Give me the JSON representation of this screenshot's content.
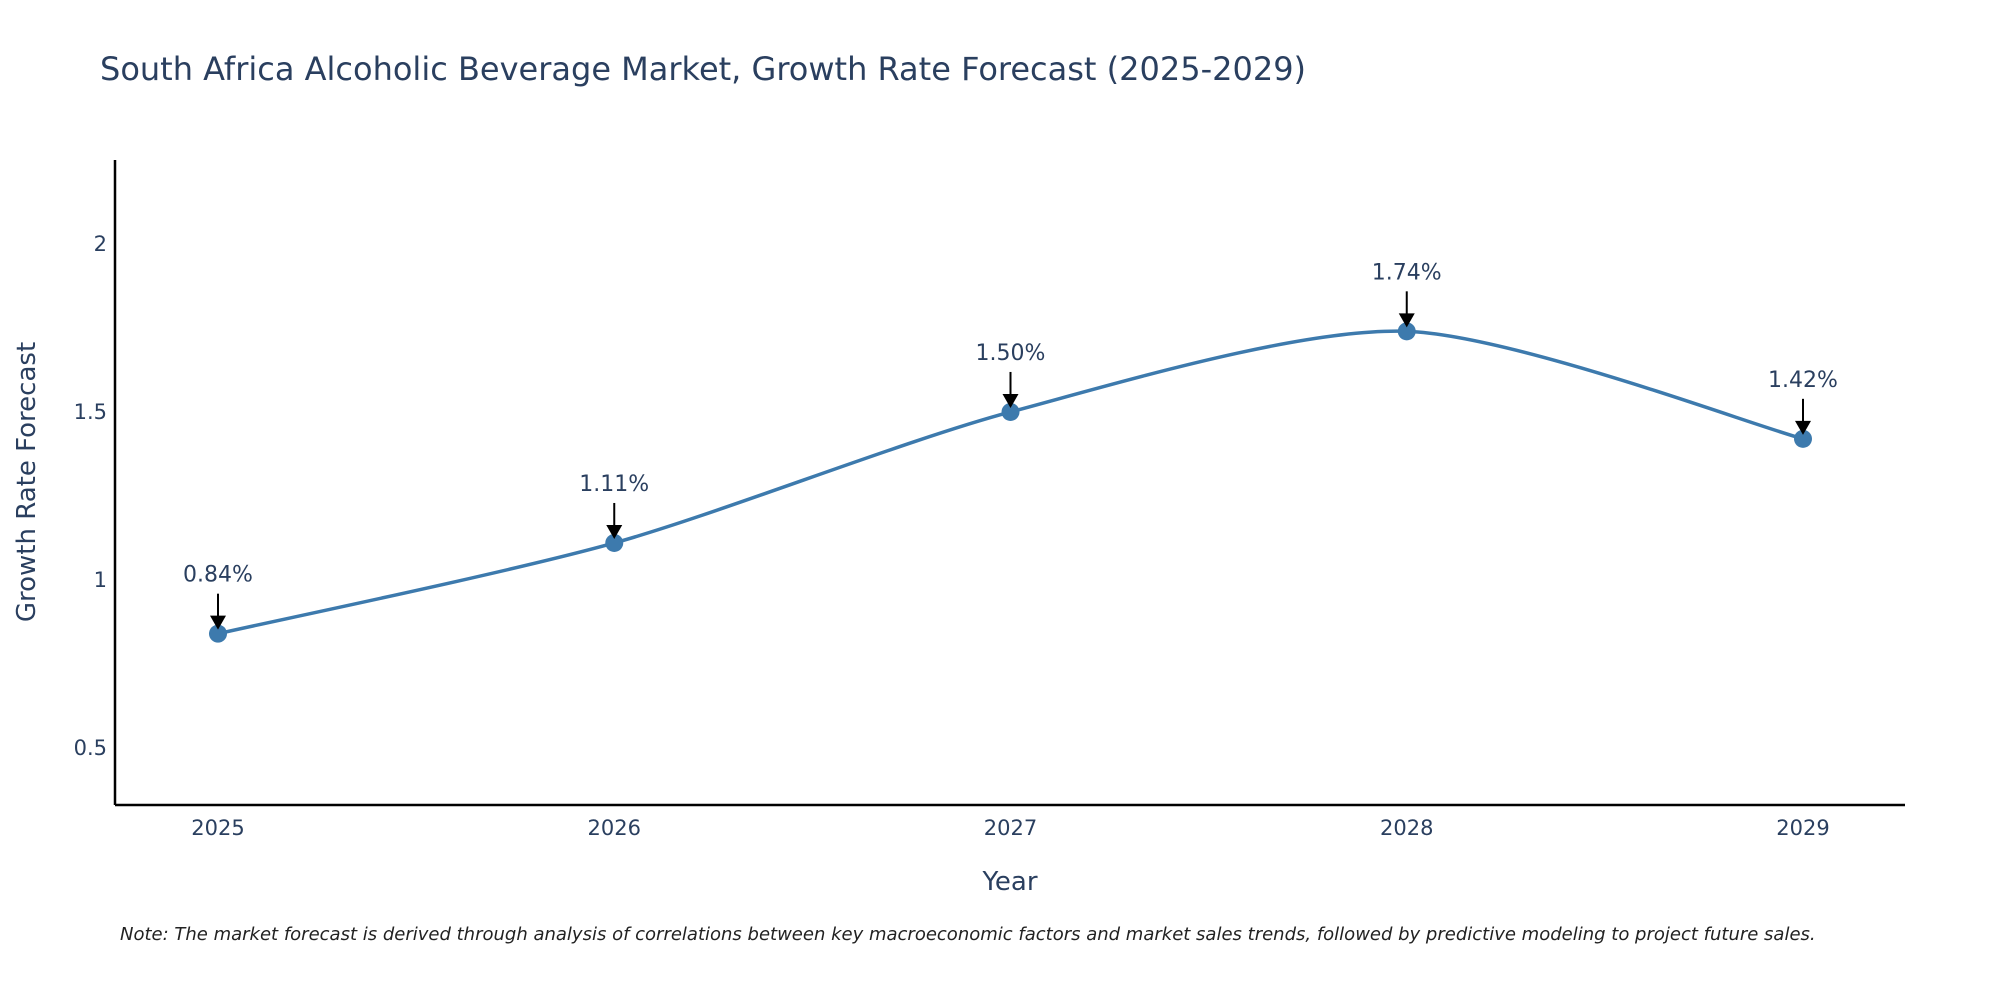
{
  "chart_data": {
    "type": "line",
    "title": "South Africa Alcoholic Beverage Market, Growth Rate Forecast (2025-2029)",
    "xlabel": "Year",
    "ylabel": "Growth Rate Forecast",
    "categories": [
      "2025",
      "2026",
      "2027",
      "2028",
      "2029"
    ],
    "series": [
      {
        "name": "Growth Rate Forecast",
        "values": [
          0.84,
          1.11,
          1.5,
          1.74,
          1.42
        ],
        "labels": [
          "0.84%",
          "1.11%",
          "1.50%",
          "1.74%",
          "1.42%"
        ],
        "color": "#3d7aad"
      }
    ],
    "ylim": [
      0.33,
      2.25
    ],
    "yticks": [
      0.5,
      1,
      1.5,
      2
    ],
    "ytick_labels": [
      "0.5",
      "1",
      "1.5",
      "2"
    ],
    "grid": false,
    "note": "Note: The market forecast is derived through analysis of correlations between key macroeconomic factors and market sales trends, followed by predictive modeling to project future sales."
  }
}
